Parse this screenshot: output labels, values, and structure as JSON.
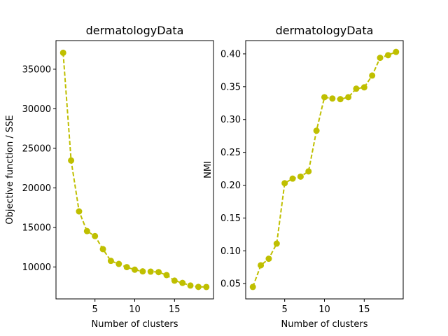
{
  "chart_data": [
    {
      "type": "line",
      "title": "dermatologyData",
      "xlabel": "Number of clusters",
      "ylabel": "Objective function / SSE",
      "xlim": [
        0.1,
        19.9
      ],
      "ylim": [
        5960,
        38620
      ],
      "xticks": [
        5,
        10,
        15
      ],
      "yticks": [
        10000,
        15000,
        20000,
        25000,
        30000,
        35000
      ],
      "color": "#bfbf00",
      "marker": "circle",
      "line_style": "dashed",
      "series": [
        {
          "x": [
            1,
            2,
            3,
            4,
            5,
            6,
            7,
            8,
            9,
            10,
            11,
            12,
            13,
            14,
            15,
            16,
            17,
            18,
            19
          ],
          "values": [
            37080,
            23460,
            17020,
            14530,
            13900,
            12250,
            10770,
            10380,
            9980,
            9650,
            9440,
            9410,
            9350,
            8970,
            8270,
            7980,
            7650,
            7480,
            7470
          ]
        }
      ]
    },
    {
      "type": "line",
      "title": "dermatologyData",
      "xlabel": "Number of clusters",
      "ylabel": "NMI",
      "xlim": [
        0.1,
        19.9
      ],
      "ylim": [
        0.0268,
        0.4202
      ],
      "xticks": [
        5,
        10,
        15
      ],
      "yticks": [
        0.05,
        0.1,
        0.15,
        0.2,
        0.25,
        0.3,
        0.35,
        0.4
      ],
      "color": "#bfbf00",
      "marker": "circle",
      "line_style": "dashed",
      "series": [
        {
          "x": [
            1,
            2,
            3,
            4,
            5,
            6,
            7,
            8,
            9,
            10,
            11,
            12,
            13,
            14,
            15,
            16,
            17,
            18,
            19
          ],
          "values": [
            0.045,
            0.078,
            0.088,
            0.111,
            0.203,
            0.21,
            0.213,
            0.221,
            0.283,
            0.334,
            0.332,
            0.331,
            0.334,
            0.347,
            0.349,
            0.367,
            0.394,
            0.398,
            0.403
          ]
        }
      ]
    }
  ]
}
